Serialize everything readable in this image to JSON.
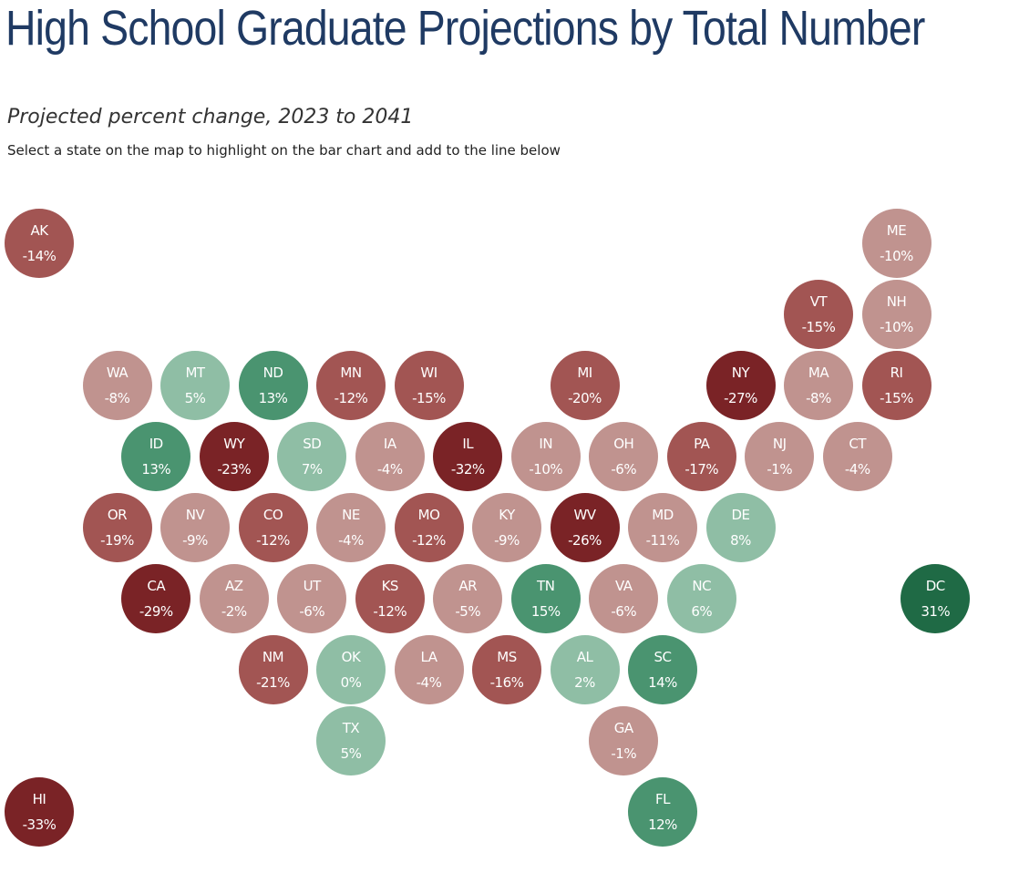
{
  "title": "High School Graduate Projections by Total Number",
  "subtitle": "Projected percent change, 2023 to 2041",
  "instructions": "Select a state on the map to highlight on the bar chart and add to the line below",
  "colors": {
    "neg_light": "#c0938f",
    "neg_medium": "#a25553",
    "neg_dark": "#7a2326",
    "pos_light": "#8fbea5",
    "pos_medium": "#4a9470",
    "pos_dark": "#1f6a45",
    "title": "#1f3a63"
  },
  "states": [
    {
      "abbr": "AK",
      "value": "-14%",
      "pct": -14,
      "col": 0,
      "row": 0,
      "tone": "neg_medium"
    },
    {
      "abbr": "ME",
      "value": "-10%",
      "pct": -10,
      "col": 11,
      "row": 0,
      "tone": "neg_light"
    },
    {
      "abbr": "VT",
      "value": "-15%",
      "pct": -15,
      "col": 10,
      "row": 1,
      "tone": "neg_medium"
    },
    {
      "abbr": "NH",
      "value": "-10%",
      "pct": -10,
      "col": 11,
      "row": 1,
      "tone": "neg_light"
    },
    {
      "abbr": "WA",
      "value": "-8%",
      "pct": -8,
      "col": 1,
      "row": 2,
      "tone": "neg_light"
    },
    {
      "abbr": "MT",
      "value": "5%",
      "pct": 5,
      "col": 2,
      "row": 2,
      "tone": "pos_light"
    },
    {
      "abbr": "ND",
      "value": "13%",
      "pct": 13,
      "col": 3,
      "row": 2,
      "tone": "pos_medium"
    },
    {
      "abbr": "MN",
      "value": "-12%",
      "pct": -12,
      "col": 4,
      "row": 2,
      "tone": "neg_medium"
    },
    {
      "abbr": "WI",
      "value": "-15%",
      "pct": -15,
      "col": 5,
      "row": 2,
      "tone": "neg_medium"
    },
    {
      "abbr": "MI",
      "value": "-20%",
      "pct": -20,
      "col": 7,
      "row": 2,
      "tone": "neg_medium"
    },
    {
      "abbr": "NY",
      "value": "-27%",
      "pct": -27,
      "col": 9,
      "row": 2,
      "tone": "neg_dark"
    },
    {
      "abbr": "MA",
      "value": "-8%",
      "pct": -8,
      "col": 10,
      "row": 2,
      "tone": "neg_light"
    },
    {
      "abbr": "RI",
      "value": "-15%",
      "pct": -15,
      "col": 11,
      "row": 2,
      "tone": "neg_medium"
    },
    {
      "abbr": "ID",
      "value": "13%",
      "pct": 13,
      "col": 1.5,
      "row": 3,
      "tone": "pos_medium"
    },
    {
      "abbr": "WY",
      "value": "-23%",
      "pct": -23,
      "col": 2.5,
      "row": 3,
      "tone": "neg_dark"
    },
    {
      "abbr": "SD",
      "value": "7%",
      "pct": 7,
      "col": 3.5,
      "row": 3,
      "tone": "pos_light"
    },
    {
      "abbr": "IA",
      "value": "-4%",
      "pct": -4,
      "col": 4.5,
      "row": 3,
      "tone": "neg_light"
    },
    {
      "abbr": "IL",
      "value": "-32%",
      "pct": -32,
      "col": 5.5,
      "row": 3,
      "tone": "neg_dark"
    },
    {
      "abbr": "IN",
      "value": "-10%",
      "pct": -10,
      "col": 6.5,
      "row": 3,
      "tone": "neg_light"
    },
    {
      "abbr": "OH",
      "value": "-6%",
      "pct": -6,
      "col": 7.5,
      "row": 3,
      "tone": "neg_light"
    },
    {
      "abbr": "PA",
      "value": "-17%",
      "pct": -17,
      "col": 8.5,
      "row": 3,
      "tone": "neg_medium"
    },
    {
      "abbr": "NJ",
      "value": "-1%",
      "pct": -1,
      "col": 9.5,
      "row": 3,
      "tone": "neg_light"
    },
    {
      "abbr": "CT",
      "value": "-4%",
      "pct": -4,
      "col": 10.5,
      "row": 3,
      "tone": "neg_light"
    },
    {
      "abbr": "OR",
      "value": "-19%",
      "pct": -19,
      "col": 1,
      "row": 4,
      "tone": "neg_medium"
    },
    {
      "abbr": "NV",
      "value": "-9%",
      "pct": -9,
      "col": 2,
      "row": 4,
      "tone": "neg_light"
    },
    {
      "abbr": "CO",
      "value": "-12%",
      "pct": -12,
      "col": 3,
      "row": 4,
      "tone": "neg_medium"
    },
    {
      "abbr": "NE",
      "value": "-4%",
      "pct": -4,
      "col": 4,
      "row": 4,
      "tone": "neg_light"
    },
    {
      "abbr": "MO",
      "value": "-12%",
      "pct": -12,
      "col": 5,
      "row": 4,
      "tone": "neg_medium"
    },
    {
      "abbr": "KY",
      "value": "-9%",
      "pct": -9,
      "col": 6,
      "row": 4,
      "tone": "neg_light"
    },
    {
      "abbr": "WV",
      "value": "-26%",
      "pct": -26,
      "col": 7,
      "row": 4,
      "tone": "neg_dark"
    },
    {
      "abbr": "MD",
      "value": "-11%",
      "pct": -11,
      "col": 8,
      "row": 4,
      "tone": "neg_light"
    },
    {
      "abbr": "DE",
      "value": "8%",
      "pct": 8,
      "col": 9,
      "row": 4,
      "tone": "pos_light"
    },
    {
      "abbr": "CA",
      "value": "-29%",
      "pct": -29,
      "col": 1.5,
      "row": 5,
      "tone": "neg_dark"
    },
    {
      "abbr": "AZ",
      "value": "-2%",
      "pct": -2,
      "col": 2.5,
      "row": 5,
      "tone": "neg_light"
    },
    {
      "abbr": "UT",
      "value": "-6%",
      "pct": -6,
      "col": 3.5,
      "row": 5,
      "tone": "neg_light"
    },
    {
      "abbr": "KS",
      "value": "-12%",
      "pct": -12,
      "col": 4.5,
      "row": 5,
      "tone": "neg_medium"
    },
    {
      "abbr": "AR",
      "value": "-5%",
      "pct": -5,
      "col": 5.5,
      "row": 5,
      "tone": "neg_light"
    },
    {
      "abbr": "TN",
      "value": "15%",
      "pct": 15,
      "col": 6.5,
      "row": 5,
      "tone": "pos_medium"
    },
    {
      "abbr": "VA",
      "value": "-6%",
      "pct": -6,
      "col": 7.5,
      "row": 5,
      "tone": "neg_light"
    },
    {
      "abbr": "NC",
      "value": "6%",
      "pct": 6,
      "col": 8.5,
      "row": 5,
      "tone": "pos_light"
    },
    {
      "abbr": "DC",
      "value": "31%",
      "pct": 31,
      "col": 11.5,
      "row": 5,
      "tone": "pos_dark"
    },
    {
      "abbr": "NM",
      "value": "-21%",
      "pct": -21,
      "col": 3,
      "row": 6,
      "tone": "neg_medium"
    },
    {
      "abbr": "OK",
      "value": "0%",
      "pct": 0,
      "col": 4,
      "row": 6,
      "tone": "pos_light"
    },
    {
      "abbr": "LA",
      "value": "-4%",
      "pct": -4,
      "col": 5,
      "row": 6,
      "tone": "neg_light"
    },
    {
      "abbr": "MS",
      "value": "-16%",
      "pct": -16,
      "col": 6,
      "row": 6,
      "tone": "neg_medium"
    },
    {
      "abbr": "AL",
      "value": "2%",
      "pct": 2,
      "col": 7,
      "row": 6,
      "tone": "pos_light"
    },
    {
      "abbr": "SC",
      "value": "14%",
      "pct": 14,
      "col": 8,
      "row": 6,
      "tone": "pos_medium"
    },
    {
      "abbr": "TX",
      "value": "5%",
      "pct": 5,
      "col": 4,
      "row": 7,
      "tone": "pos_light"
    },
    {
      "abbr": "GA",
      "value": "-1%",
      "pct": -1,
      "col": 7.5,
      "row": 7,
      "tone": "neg_light"
    },
    {
      "abbr": "HI",
      "value": "-33%",
      "pct": -33,
      "col": 0,
      "row": 8,
      "tone": "neg_dark"
    },
    {
      "abbr": "FL",
      "value": "12%",
      "pct": 12,
      "col": 8,
      "row": 8,
      "tone": "pos_medium"
    }
  ]
}
